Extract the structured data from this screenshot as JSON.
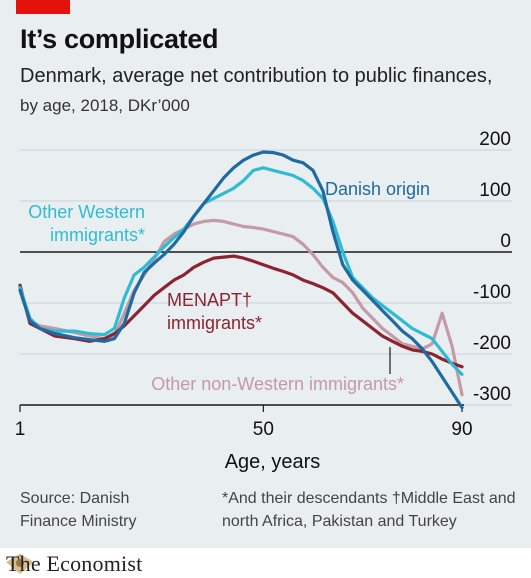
{
  "header": {
    "title": "It’s complicated",
    "subtitle_main": "Denmark, average net contribution to public finances,",
    "subtitle_detail": " by age, 2018, DKr’000"
  },
  "footer": {
    "source": "Source: Danish Finance Ministry",
    "notes": "*And their descendants   †Middle East and north Africa, Pakistan and Turkey"
  },
  "brand": {
    "name": "The Economist"
  },
  "colors": {
    "danish": "#1f6aa0",
    "other_western": "#2fbcd2",
    "menapt": "#8c2331",
    "other_non_western": "#c49aa4",
    "brand_red": "#e3120b"
  },
  "chart_data": {
    "type": "line",
    "xlabel": "Age, years",
    "ylabel": "",
    "xlim": [
      1,
      90
    ],
    "ylim": [
      -300,
      200
    ],
    "x_ticks": [
      1,
      50,
      90
    ],
    "y_ticks": [
      200,
      100,
      0,
      -100,
      -200,
      -300
    ],
    "grid": "horizontal",
    "zero_line": true,
    "series": [
      {
        "name": "Danish origin",
        "label_lines": [
          "Danish origin"
        ],
        "color_key": "danish",
        "x": [
          1,
          3,
          5,
          8,
          12,
          15,
          18,
          20,
          22,
          24,
          26,
          28,
          30,
          32,
          34,
          36,
          38,
          40,
          42,
          44,
          46,
          48,
          50,
          52,
          54,
          56,
          58,
          60,
          62,
          64,
          66,
          68,
          70,
          72,
          74,
          76,
          78,
          80,
          82,
          84,
          86,
          88,
          90
        ],
        "y": [
          -75,
          -135,
          -150,
          -160,
          -168,
          -172,
          -175,
          -170,
          -140,
          -80,
          -40,
          -22,
          -5,
          15,
          40,
          70,
          95,
          120,
          145,
          165,
          180,
          190,
          196,
          195,
          190,
          180,
          175,
          160,
          120,
          40,
          -25,
          -55,
          -75,
          -95,
          -115,
          -135,
          -155,
          -170,
          -190,
          -215,
          -245,
          -275,
          -305
        ]
      },
      {
        "name": "Other Western immigrants*",
        "label_lines": [
          "Other Western",
          "immigrants*"
        ],
        "color_key": "other_western",
        "x": [
          1,
          3,
          5,
          8,
          12,
          15,
          18,
          20,
          22,
          24,
          26,
          28,
          30,
          32,
          34,
          36,
          38,
          40,
          42,
          44,
          46,
          48,
          50,
          52,
          54,
          56,
          58,
          60,
          62,
          64,
          66,
          68,
          70,
          72,
          74,
          76,
          78,
          80,
          82,
          84,
          86,
          88,
          90
        ],
        "y": [
          -70,
          -130,
          -150,
          -155,
          -155,
          -160,
          -162,
          -150,
          -90,
          -45,
          -30,
          -10,
          10,
          28,
          45,
          70,
          95,
          105,
          115,
          125,
          140,
          160,
          165,
          160,
          155,
          150,
          140,
          125,
          105,
          60,
          0,
          -50,
          -70,
          -90,
          -105,
          -120,
          -135,
          -150,
          -160,
          -170,
          -195,
          -220,
          -240
        ]
      },
      {
        "name": "MENAPT† immigrants*",
        "label_lines": [
          "MENAPT†",
          "immigrants*"
        ],
        "color_key": "menapt",
        "x": [
          1,
          3,
          5,
          8,
          12,
          15,
          18,
          20,
          22,
          24,
          26,
          28,
          30,
          32,
          34,
          36,
          38,
          40,
          42,
          44,
          46,
          48,
          50,
          52,
          54,
          56,
          58,
          60,
          62,
          64,
          66,
          68,
          70,
          72,
          74,
          76,
          78,
          80,
          82,
          84,
          86,
          88,
          90
        ],
        "y": [
          -65,
          -140,
          -150,
          -165,
          -170,
          -175,
          -170,
          -160,
          -145,
          -125,
          -105,
          -85,
          -70,
          -55,
          -45,
          -30,
          -20,
          -12,
          -10,
          -8,
          -12,
          -18,
          -25,
          -32,
          -38,
          -45,
          -55,
          -62,
          -70,
          -80,
          -100,
          -120,
          -135,
          -150,
          -165,
          -175,
          -185,
          -192,
          -195,
          -200,
          -210,
          -218,
          -225
        ]
      },
      {
        "name": "Other non-Western immigrants*",
        "label_lines": [
          "Other non-Western immigrants*"
        ],
        "color_key": "other_non_western",
        "x": [
          1,
          3,
          5,
          8,
          12,
          15,
          18,
          20,
          22,
          24,
          26,
          28,
          30,
          32,
          34,
          36,
          38,
          40,
          42,
          44,
          46,
          48,
          50,
          52,
          54,
          56,
          58,
          60,
          62,
          64,
          66,
          68,
          70,
          72,
          74,
          76,
          78,
          80,
          82,
          84,
          86,
          88,
          90
        ],
        "y": [
          -70,
          -135,
          -145,
          -150,
          -158,
          -165,
          -170,
          -165,
          -120,
          -75,
          -45,
          -15,
          20,
          35,
          45,
          55,
          60,
          62,
          60,
          55,
          50,
          48,
          45,
          40,
          35,
          30,
          15,
          -5,
          -30,
          -50,
          -60,
          -80,
          -110,
          -130,
          -150,
          -165,
          -180,
          -185,
          -190,
          -180,
          -120,
          -185,
          -280
        ]
      }
    ]
  }
}
